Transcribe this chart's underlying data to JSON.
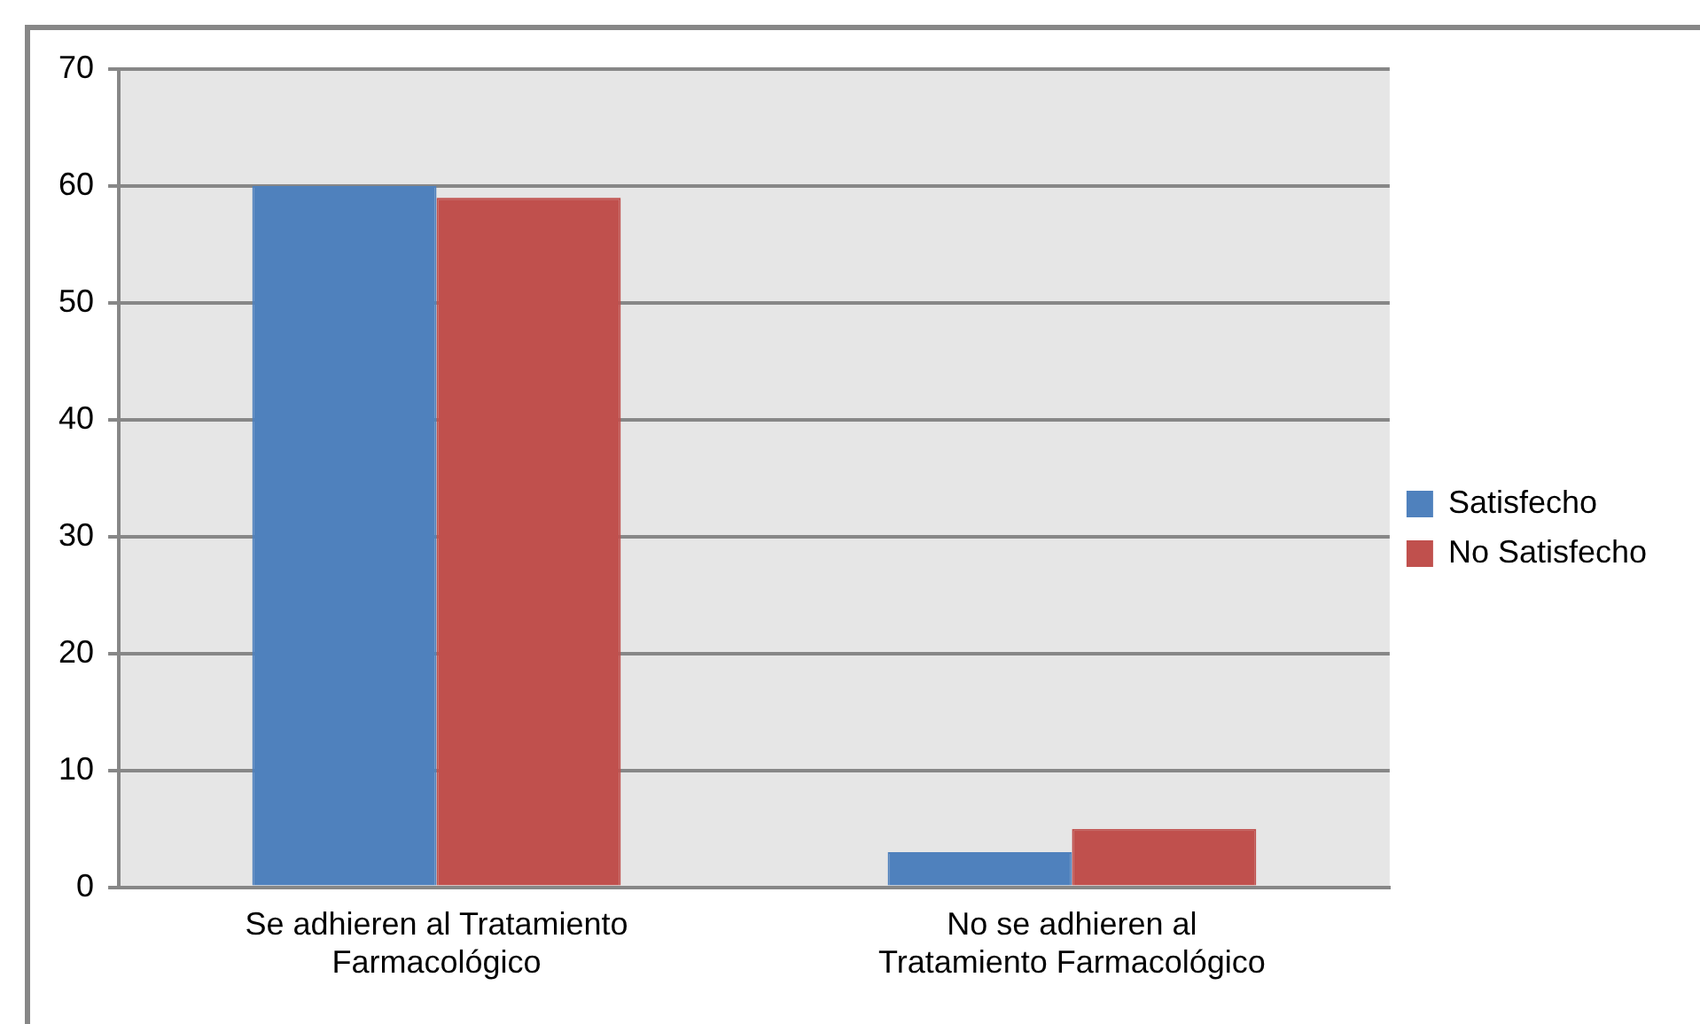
{
  "chart_data": {
    "type": "bar",
    "categories": [
      "Se adhieren al Tratamiento Farmacológico",
      "No se adhieren al Tratamiento Farmacológico"
    ],
    "series": [
      {
        "name": "Satisfecho",
        "color": "#4f81bd",
        "values": [
          60,
          3
        ]
      },
      {
        "name": "No Satisfecho",
        "color": "#c0504d",
        "values": [
          59,
          5
        ]
      }
    ],
    "ylim": [
      0,
      70
    ],
    "yticks": [
      0,
      10,
      20,
      30,
      40,
      50,
      60,
      70
    ],
    "grid": "y",
    "legend": "right"
  }
}
